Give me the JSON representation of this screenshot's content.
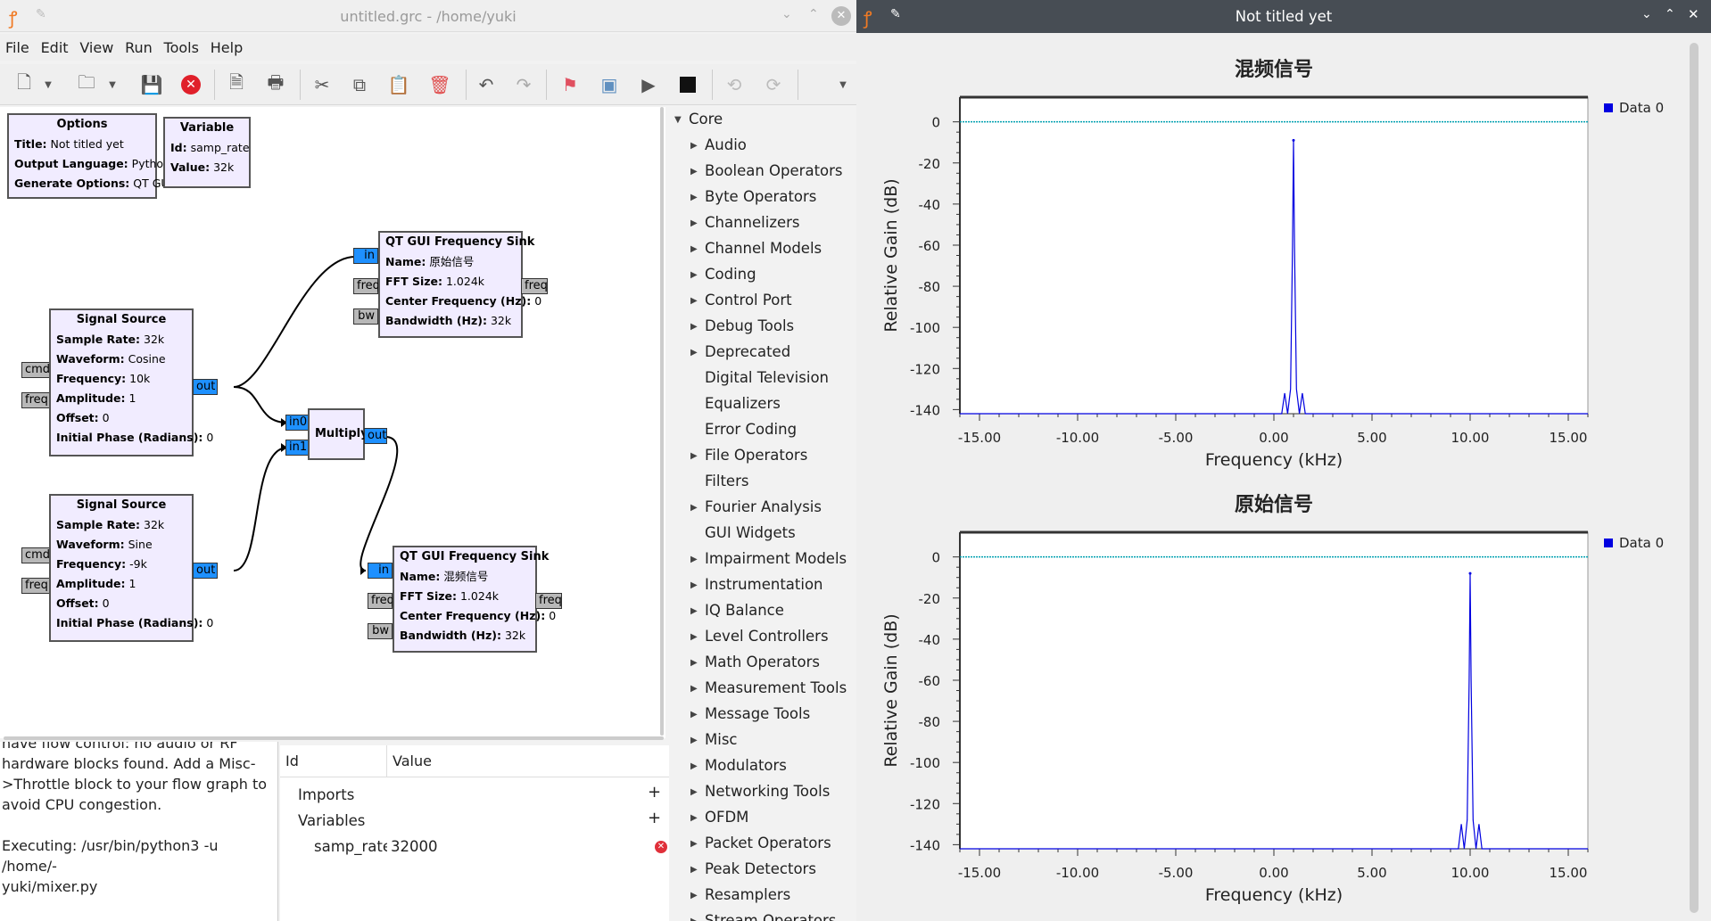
{
  "grc_window": {
    "title": "untitled.grc - /home/yuki",
    "menu": [
      "File",
      "Edit",
      "View",
      "Run",
      "Tools",
      "Help"
    ],
    "toolbar_icons": [
      "new-icon",
      "dropdown-icon",
      "open-icon",
      "dropdown-icon",
      "save-icon",
      "close-icon",
      "properties-icon",
      "print-icon",
      "cut-icon",
      "copy-icon",
      "paste-icon",
      "delete-icon",
      "undo-icon",
      "redo-icon",
      "error-icon",
      "generate-icon",
      "run-icon",
      "stop-icon",
      "rotate-ccw-icon",
      "rotate-cw-icon",
      "more-icon"
    ]
  },
  "blocks": {
    "options": {
      "title": "Options",
      "rows": [
        [
          "Title:",
          "Not titled yet"
        ],
        [
          "Output Language:",
          "Python"
        ],
        [
          "Generate Options:",
          "QT GUI"
        ]
      ]
    },
    "variable": {
      "title": "Variable",
      "rows": [
        [
          "Id:",
          "samp_rate"
        ],
        [
          "Value:",
          "32k"
        ]
      ]
    },
    "sig1": {
      "title": "Signal Source",
      "rows": [
        [
          "Sample Rate:",
          "32k"
        ],
        [
          "Waveform:",
          "Cosine"
        ],
        [
          "Frequency:",
          "10k"
        ],
        [
          "Amplitude:",
          "1"
        ],
        [
          "Offset:",
          "0"
        ],
        [
          "Initial Phase (Radians):",
          "0"
        ]
      ]
    },
    "sig2": {
      "title": "Signal Source",
      "rows": [
        [
          "Sample Rate:",
          "32k"
        ],
        [
          "Waveform:",
          "Sine"
        ],
        [
          "Frequency:",
          "-9k"
        ],
        [
          "Amplitude:",
          "1"
        ],
        [
          "Offset:",
          "0"
        ],
        [
          "Initial Phase (Radians):",
          "0"
        ]
      ]
    },
    "sink1": {
      "title": "QT GUI Frequency Sink",
      "rows": [
        [
          "Name:",
          "原始信号"
        ],
        [
          "FFT Size:",
          "1.024k"
        ],
        [
          "Center Frequency (Hz):",
          "0"
        ],
        [
          "Bandwidth (Hz):",
          "32k"
        ]
      ]
    },
    "sink2": {
      "title": "QT GUI Frequency Sink",
      "rows": [
        [
          "Name:",
          "混频信号"
        ],
        [
          "FFT Size:",
          "1.024k"
        ],
        [
          "Center Frequency (Hz):",
          "0"
        ],
        [
          "Bandwidth (Hz):",
          "32k"
        ]
      ]
    },
    "multiply": {
      "title": "Multiply"
    },
    "ports": {
      "cmd": "cmd",
      "freq": "freq",
      "out": "out",
      "in": "in",
      "bw": "bw",
      "in0": "in0",
      "in1": "in1"
    }
  },
  "library": {
    "root": "Core",
    "items": [
      {
        "label": "Audio",
        "expandable": true
      },
      {
        "label": "Boolean Operators",
        "expandable": true
      },
      {
        "label": "Byte Operators",
        "expandable": true
      },
      {
        "label": "Channelizers",
        "expandable": true
      },
      {
        "label": "Channel Models",
        "expandable": true
      },
      {
        "label": "Coding",
        "expandable": true
      },
      {
        "label": "Control Port",
        "expandable": true
      },
      {
        "label": "Debug Tools",
        "expandable": true
      },
      {
        "label": "Deprecated",
        "expandable": true
      },
      {
        "label": "Digital Television",
        "expandable": false
      },
      {
        "label": "Equalizers",
        "expandable": false
      },
      {
        "label": "Error Coding",
        "expandable": false
      },
      {
        "label": "File Operators",
        "expandable": true
      },
      {
        "label": "Filters",
        "expandable": false
      },
      {
        "label": "Fourier Analysis",
        "expandable": true
      },
      {
        "label": "GUI Widgets",
        "expandable": false
      },
      {
        "label": "Impairment Models",
        "expandable": true
      },
      {
        "label": "Instrumentation",
        "expandable": true
      },
      {
        "label": "IQ Balance",
        "expandable": true
      },
      {
        "label": "Level Controllers",
        "expandable": true
      },
      {
        "label": "Math Operators",
        "expandable": true
      },
      {
        "label": "Measurement Tools",
        "expandable": true
      },
      {
        "label": "Message Tools",
        "expandable": true
      },
      {
        "label": "Misc",
        "expandable": true
      },
      {
        "label": "Modulators",
        "expandable": true
      },
      {
        "label": "Networking Tools",
        "expandable": true
      },
      {
        "label": "OFDM",
        "expandable": true
      },
      {
        "label": "Packet Operators",
        "expandable": true
      },
      {
        "label": "Peak Detectors",
        "expandable": true
      },
      {
        "label": "Resamplers",
        "expandable": true
      },
      {
        "label": "Stream Operators",
        "expandable": true
      }
    ]
  },
  "console": {
    "lines": [
      "have flow control: no audio or RF",
      "hardware blocks found. Add a Misc-",
      ">Throttle block to your flow graph to",
      "avoid CPU congestion.",
      "",
      "Executing: /usr/bin/python3 -u /home/-",
      "yuki/mixer.py"
    ]
  },
  "variables_panel": {
    "col_id": "Id",
    "col_value": "Value",
    "imports": "Imports",
    "variables": "Variables",
    "var_name": "samp_rate",
    "var_value": "32000",
    "add_symbol": "+"
  },
  "qt_window": {
    "title": "Not titled yet"
  },
  "chart_data": [
    {
      "type": "line",
      "title": "混频信号",
      "xlabel": "Frequency (kHz)",
      "ylabel": "Relative Gain (dB)",
      "xlim": [
        -16,
        16
      ],
      "ylim": [
        -142,
        12
      ],
      "xticks": [
        "-15.00",
        "-10.00",
        "-5.00",
        "0.00",
        "5.00",
        "10.00",
        "15.00"
      ],
      "xtick_values": [
        -15,
        -10,
        -5,
        0,
        5,
        10,
        15
      ],
      "yticks": [
        "0",
        "-20",
        "-40",
        "-60",
        "-80",
        "-100",
        "-120",
        "-140"
      ],
      "ytick_values": [
        0,
        -20,
        -40,
        -60,
        -80,
        -100,
        -120,
        -140
      ],
      "legend": [
        "Data 0"
      ],
      "legend_position": "top-right",
      "baseline_db": 0,
      "peak": {
        "x_khz": 1.0,
        "db": -9
      },
      "series": [
        {
          "name": "Data 0",
          "x": [
            -16,
            0.4,
            0.55,
            0.7,
            0.85,
            0.95,
            1.0,
            1.05,
            1.15,
            1.3,
            1.45,
            1.6,
            16
          ],
          "y": [
            -142,
            -142,
            -132,
            -142,
            -130,
            -60,
            -9,
            -60,
            -130,
            -142,
            -132,
            -142,
            -142
          ]
        }
      ],
      "colors": {
        "series": "#0000e0",
        "baseline": "#00a0b0"
      }
    },
    {
      "type": "line",
      "title": "原始信号",
      "xlabel": "Frequency (kHz)",
      "ylabel": "Relative Gain (dB)",
      "xlim": [
        -16,
        16
      ],
      "ylim": [
        -142,
        12
      ],
      "xticks": [
        "-15.00",
        "-10.00",
        "-5.00",
        "0.00",
        "5.00",
        "10.00",
        "15.00"
      ],
      "xtick_values": [
        -15,
        -10,
        -5,
        0,
        5,
        10,
        15
      ],
      "yticks": [
        "0",
        "-20",
        "-40",
        "-60",
        "-80",
        "-100",
        "-120",
        "-140"
      ],
      "ytick_values": [
        0,
        -20,
        -40,
        -60,
        -80,
        -100,
        -120,
        -140
      ],
      "legend": [
        "Data 0"
      ],
      "legend_position": "top-right",
      "baseline_db": 0,
      "peak": {
        "x_khz": 10.0,
        "db": -8
      },
      "series": [
        {
          "name": "Data 0",
          "x": [
            -16,
            9.4,
            9.55,
            9.7,
            9.85,
            9.95,
            10.0,
            10.05,
            10.15,
            10.3,
            10.45,
            10.6,
            16
          ],
          "y": [
            -142,
            -142,
            -130,
            -142,
            -128,
            -60,
            -8,
            -60,
            -128,
            -142,
            -130,
            -142,
            -142
          ]
        }
      ],
      "colors": {
        "series": "#0000e0",
        "baseline": "#00a0b0"
      }
    }
  ]
}
